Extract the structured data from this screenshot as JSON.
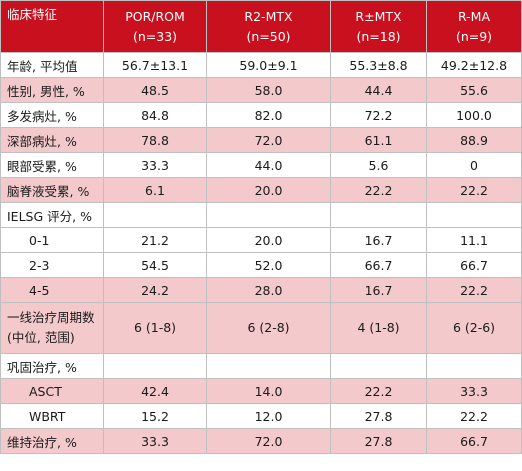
{
  "header": {
    "label": "临床特征",
    "columns": [
      {
        "name": "POR/ROM",
        "n": "(n=33)"
      },
      {
        "name": "R2-MTX",
        "n": "(n=50)"
      },
      {
        "name": "R±MTX",
        "n": "(n=18)"
      },
      {
        "name": "R-MA",
        "n": "(n=9)"
      }
    ]
  },
  "rows": [
    {
      "label": "年龄, 平均值",
      "values": [
        "56.7±13.1",
        "59.0±9.1",
        "55.3±8.8",
        "49.2±12.8"
      ]
    },
    {
      "label": "性别, 男性, %",
      "values": [
        "48.5",
        "58.0",
        "44.4",
        "55.6"
      ]
    },
    {
      "label": "多发病灶, %",
      "values": [
        "84.8",
        "82.0",
        "72.2",
        "100.0"
      ]
    },
    {
      "label": "深部病灶, %",
      "values": [
        "78.8",
        "72.0",
        "61.1",
        "88.9"
      ]
    },
    {
      "label": "眼部受累, %",
      "values": [
        "33.3",
        "44.0",
        "5.6",
        "0"
      ]
    },
    {
      "label": "脑脊液受累, %",
      "values": [
        "6.1",
        "20.0",
        "22.2",
        "22.2"
      ]
    },
    {
      "label": "IELSG 评分, %",
      "values": [
        "",
        "",
        "",
        ""
      ]
    },
    {
      "label": "0-1",
      "values": [
        "21.2",
        "20.0",
        "16.7",
        "11.1"
      ]
    },
    {
      "label": "2-3",
      "values": [
        "54.5",
        "52.0",
        "66.7",
        "66.7"
      ]
    },
    {
      "label": "4-5",
      "values": [
        "24.2",
        "28.0",
        "16.7",
        "22.2"
      ]
    },
    {
      "label_lines": [
        "一线治疗周期数",
        "(中位, 范围)"
      ],
      "values": [
        "6 (1-8)",
        "6 (2-8)",
        "4 (1-8)",
        "6 (2-6)"
      ]
    },
    {
      "label": "巩固治疗, %",
      "values": [
        "",
        "",
        "",
        ""
      ]
    },
    {
      "label": "ASCT",
      "values": [
        "42.4",
        "14.0",
        "22.2",
        "33.3"
      ]
    },
    {
      "label": "WBRT",
      "values": [
        "15.2",
        "12.0",
        "27.8",
        "22.2"
      ]
    },
    {
      "label": "维持治疗, %",
      "values": [
        "33.3",
        "72.0",
        "27.8",
        "66.7"
      ]
    }
  ]
}
